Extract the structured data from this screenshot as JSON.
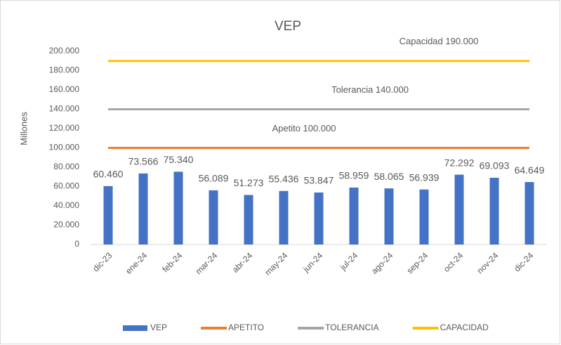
{
  "chart_data": {
    "type": "combo",
    "title": "VEP",
    "y_label": "Millones",
    "categories": [
      "dic-23",
      "ene-24",
      "feb-24",
      "mar-24",
      "abr-24",
      "may-24",
      "jun-24",
      "jul-24",
      "ago-24",
      "sep-24",
      "oct-24",
      "nov-24",
      "dic-24"
    ],
    "series": [
      {
        "name": "VEP",
        "type": "bar",
        "color": "#4472c4",
        "values": [
          60460,
          73566,
          75340,
          56089,
          51273,
          55436,
          53847,
          58959,
          58065,
          56939,
          72292,
          69093,
          64649
        ],
        "value_labels": [
          "60.460",
          "73.566",
          "75.340",
          "56.089",
          "51.273",
          "55.436",
          "53.847",
          "58.959",
          "58.065",
          "56.939",
          "72.292",
          "69.093",
          "64.649"
        ]
      },
      {
        "name": "APETITO",
        "type": "line",
        "color": "#ed7d31",
        "annotation": "Apetito 100.000",
        "values": [
          100000,
          100000,
          100000,
          100000,
          100000,
          100000,
          100000,
          100000,
          100000,
          100000,
          100000,
          100000,
          100000
        ]
      },
      {
        "name": "TOLERANCIA",
        "type": "line",
        "color": "#a5a5a5",
        "annotation": "Tolerancia 140.000",
        "values": [
          140000,
          140000,
          140000,
          140000,
          140000,
          140000,
          140000,
          140000,
          140000,
          140000,
          140000,
          140000,
          140000
        ]
      },
      {
        "name": "CAPACIDAD",
        "type": "line",
        "color": "#ffc000",
        "annotation": "Capacidad 190.000",
        "values": [
          190000,
          190000,
          190000,
          190000,
          190000,
          190000,
          190000,
          190000,
          190000,
          190000,
          190000,
          190000,
          190000
        ]
      }
    ],
    "ylim": [
      0,
      200000
    ],
    "yticks": [
      0,
      {
        "value": 20000,
        "label": "20.000"
      },
      {
        "value": 40000,
        "label": "40.000"
      },
      {
        "value": 60000,
        "label": "60.000"
      },
      {
        "value": 80000,
        "label": "80.000"
      },
      {
        "value": 100000,
        "label": "100.000"
      },
      {
        "value": 120000,
        "label": "120.000"
      },
      {
        "value": 140000,
        "label": "140.000"
      },
      {
        "value": 160000,
        "label": "160.000"
      },
      {
        "value": 180000,
        "label": "180.000"
      },
      {
        "value": 200000,
        "label": "200.000"
      }
    ],
    "grid": false,
    "legend": "bottom"
  }
}
